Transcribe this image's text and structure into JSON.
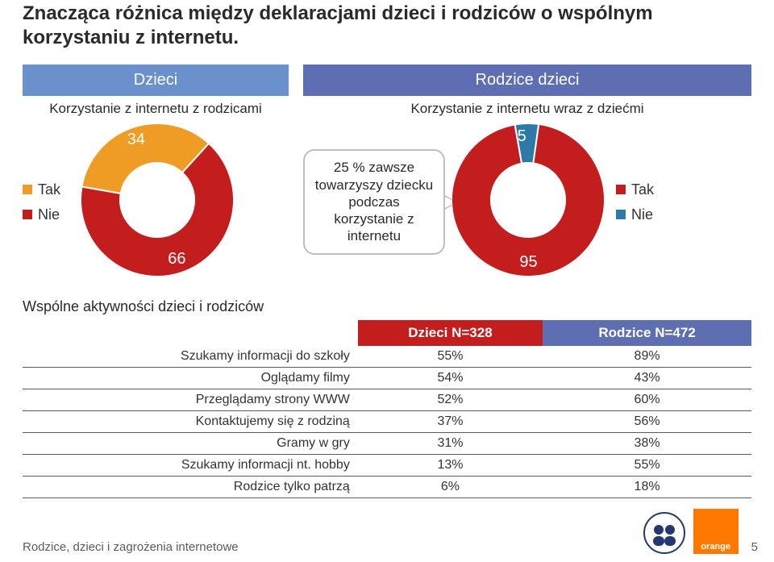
{
  "title": "Znacząca różnica między deklaracjami dzieci i rodziców o wspólnym korzystaniu z internetu.",
  "panels": {
    "left": {
      "header": "Dzieci",
      "header_bg": "#6a91cc",
      "subhead": "Korzystanie z internetu z rodzicami"
    },
    "right": {
      "header": "Rodzice dzieci",
      "header_bg": "#5d6eb3",
      "subhead": "Korzystanie z internetu wraz z dziećmi"
    }
  },
  "donut_left": {
    "type": "donut",
    "size": 190,
    "inner": 46,
    "values": {
      "tak": 34,
      "nie": 66
    },
    "colors": {
      "tak": "#ee9c23",
      "nie": "#c31d1d"
    },
    "labels": {
      "tak": "34",
      "nie": "66"
    },
    "label_color": "#ffffff"
  },
  "donut_right": {
    "type": "donut",
    "size": 190,
    "inner": 46,
    "values": {
      "tak": 95,
      "nie": 5
    },
    "colors": {
      "tak": "#c31d1d",
      "nie": "#2b7aa7"
    },
    "labels": {
      "tak": "95",
      "nie": "5"
    },
    "label_color": "#ffffff"
  },
  "legend": {
    "tak": {
      "label": "Tak",
      "color_left": "#ee9c23",
      "color_right": "#c31d1d"
    },
    "nie": {
      "label": "Nie",
      "color_left": "#c31d1d",
      "color_right": "#2b7aa7"
    }
  },
  "callout": "25 % zawsze towarzyszy dziecku podczas korzystanie z internetu",
  "table": {
    "title": "Wspólne aktywności dzieci i rodziców",
    "columns": [
      {
        "label": "Dzieci N=328",
        "bg": "#c31d1d"
      },
      {
        "label": "Rodzice N=472",
        "bg": "#5d6eb3"
      }
    ],
    "rows": [
      {
        "label": "Szukamy informacji do szkoły",
        "c1": "55%",
        "c2": "89%"
      },
      {
        "label": "Oglądamy filmy",
        "c1": "54%",
        "c2": "43%"
      },
      {
        "label": "Przeglądamy strony WWW",
        "c1": "52%",
        "c2": "60%"
      },
      {
        "label": "Kontaktujemy się z rodziną",
        "c1": "37%",
        "c2": "56%"
      },
      {
        "label": "Gramy w gry",
        "c1": "31%",
        "c2": "38%"
      },
      {
        "label": "Szukamy informacji nt. hobby",
        "c1": "13%",
        "c2": "55%"
      },
      {
        "label": "Rodzice tylko patrzą",
        "c1": "6%",
        "c2": "18%"
      }
    ],
    "border_color": "#5a5a5a",
    "font_size": 16
  },
  "footer": {
    "text": "Rodzice, dzieci i zagrożenia internetowe",
    "page": "5"
  },
  "logos": {
    "fundacja_color": "#23386f",
    "orange_bg": "#ff7900",
    "orange_label": "orange"
  }
}
